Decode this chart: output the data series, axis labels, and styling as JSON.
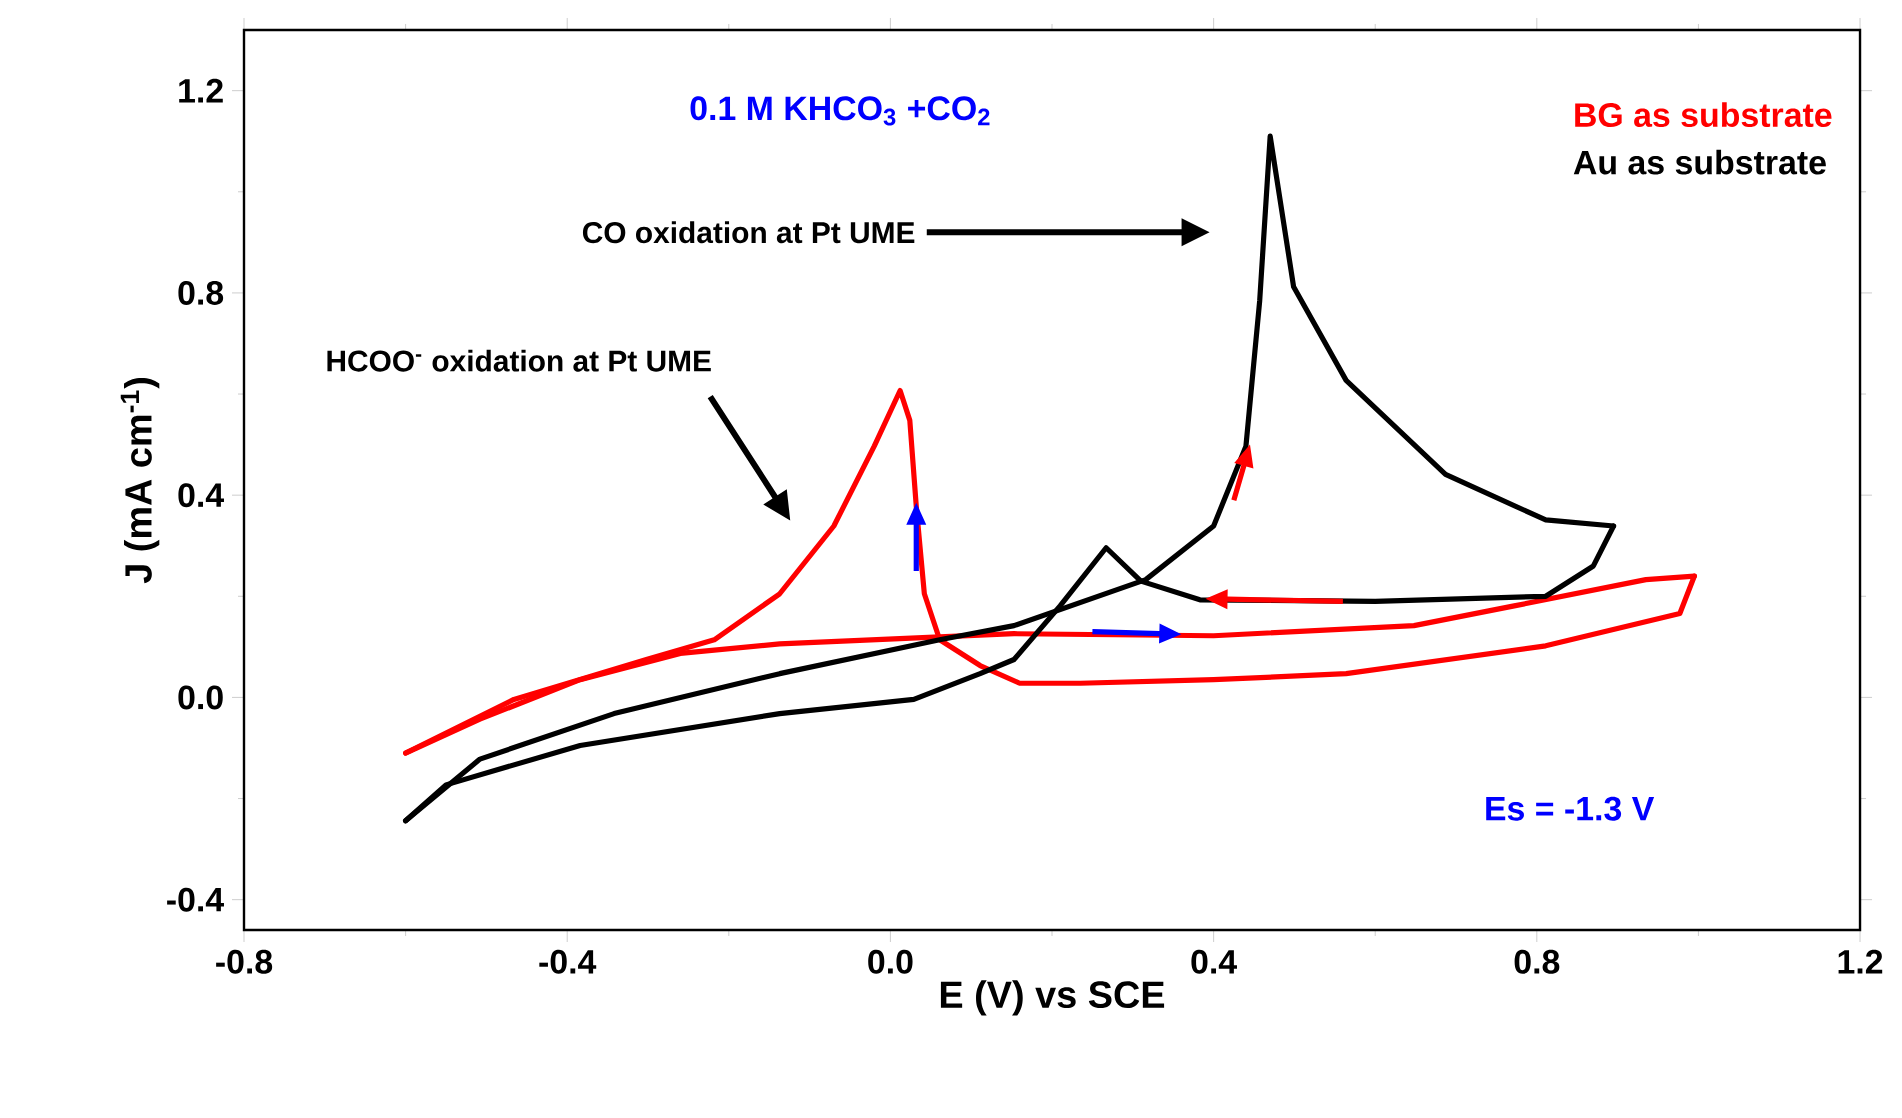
{
  "chart_data": {
    "type": "line",
    "xlabel": "E (V) vs SCE",
    "ylabel": "J (mA cm$^{-1}$)",
    "xlim": [
      -0.8,
      1.2
    ],
    "ylim": [
      -0.46,
      1.32
    ],
    "xticks": [
      -0.8,
      -0.4,
      {
        "value": 0.0,
        "label": "0.0"
      },
      0.4,
      0.8,
      1.2
    ],
    "yticks": [
      -0.4,
      {
        "value": 0.0,
        "label": "0.0"
      },
      0.4,
      0.8,
      1.2
    ],
    "legend": "top right",
    "marker": "none",
    "line_style": "solid",
    "grid": false,
    "series": [
      {
        "name": "BG as substrate",
        "color": "#ff0000",
        "x": [
          -0.6,
          -0.466,
          -0.302,
          -0.218,
          -0.137,
          -0.07,
          -0.02,
          0.012,
          0.024,
          0.032,
          0.042,
          0.061,
          0.111,
          0.16,
          0.235,
          0.4,
          0.564,
          0.811,
          0.977,
          0.995
        ],
        "values": [
          -0.11,
          -0.004,
          0.075,
          0.114,
          0.205,
          0.339,
          0.497,
          0.607,
          0.548,
          0.378,
          0.205,
          0.114,
          0.063,
          0.028,
          0.028,
          0.035,
          0.047,
          0.102,
          0.166,
          0.24
        ]
      },
      {
        "color": "#ff0000",
        "x": [
          0.995,
          0.935,
          0.772,
          0.648,
          0.4,
          0.153,
          -0.137,
          -0.26,
          -0.384,
          -0.508,
          -0.6
        ],
        "values": [
          0.24,
          0.233,
          0.181,
          0.142,
          0.122,
          0.126,
          0.106,
          0.087,
          0.035,
          -0.043,
          -0.11
        ]
      },
      {
        "name": "Au as substrate",
        "color": "#000000",
        "x": [
          -0.6,
          -0.55,
          -0.384,
          -0.137,
          0.029,
          0.111,
          0.153,
          0.21,
          0.267,
          0.31,
          0.383,
          0.6,
          0.811,
          0.87,
          0.895
        ],
        "values": [
          -0.244,
          -0.173,
          -0.095,
          -0.032,
          -0.004,
          0.047,
          0.075,
          0.181,
          0.296,
          0.23,
          0.193,
          0.19,
          0.2,
          0.26,
          0.339
        ]
      },
      {
        "color": "#000000",
        "x": [
          0.895,
          0.811,
          0.687,
          0.564,
          0.499,
          0.47,
          0.457,
          0.44,
          0.4,
          0.316,
          0.153,
          0.061,
          -0.137,
          -0.342,
          -0.508,
          -0.6
        ],
        "values": [
          0.339,
          0.351,
          0.441,
          0.627,
          0.812,
          1.11,
          0.784,
          0.497,
          0.339,
          0.233,
          0.142,
          0.114,
          0.047,
          -0.032,
          -0.122,
          -0.244
        ]
      }
    ],
    "annotations": [
      "0.1 M KHCO$_{3}$ +CO$_{2}$",
      "CO oxidation at Pt UME",
      "HCOO$^{-}$ oxidation at Pt UME",
      "Es = -1.3 V"
    ]
  }
}
